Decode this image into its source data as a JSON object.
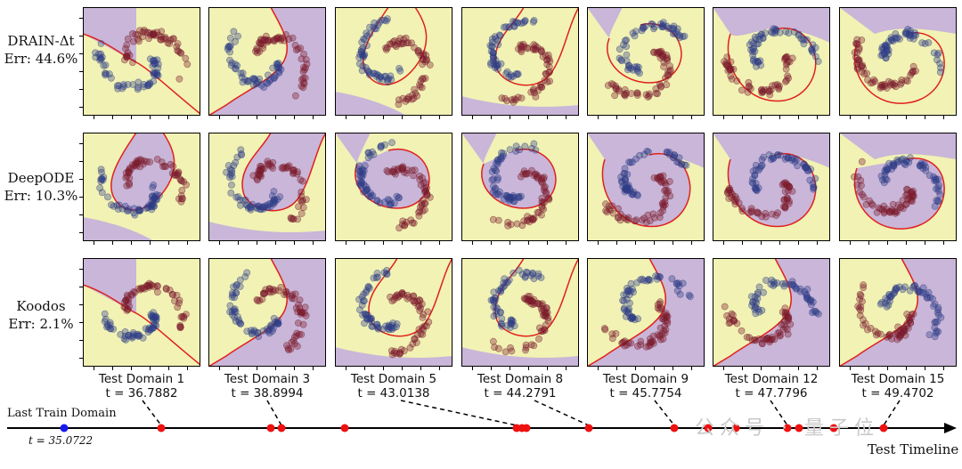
{
  "rows": [
    {
      "method": "DRAIN-Δt",
      "err": "Err: 44.6%"
    },
    {
      "method": "DeepODE",
      "err": "Err: 10.3%"
    },
    {
      "method": "Koodos",
      "err": "Err: 2.1%"
    }
  ],
  "domains": [
    {
      "name": "Test Domain 1",
      "t": "t = 36.7882"
    },
    {
      "name": "Test Domain 3",
      "t": "t = 38.8994"
    },
    {
      "name": "Test Domain 5",
      "t": "t = 43.0138"
    },
    {
      "name": "Test Domain 8",
      "t": "t = 44.2791"
    },
    {
      "name": "Test Domain 9",
      "t": "t = 45.7754"
    },
    {
      "name": "Test Domain 12",
      "t": "t = 47.7796"
    },
    {
      "name": "Test Domain 15",
      "t": "t = 49.4702"
    }
  ],
  "timeline": {
    "last_train_label": "Last Train Domain",
    "last_train_t": "t = 35.0722",
    "axis_label": "Test Timeline",
    "watermark": "公众号 · 量子位"
  },
  "colors": {
    "background_yellow": "#f1f2b4",
    "region_purple": "#c9b6d8",
    "boundary_red": "#e0201c",
    "class_blue": "#2e3d86",
    "class_red": "#7a1a2c",
    "test_point": "#ee1111",
    "train_point": "#1a1aee"
  }
}
